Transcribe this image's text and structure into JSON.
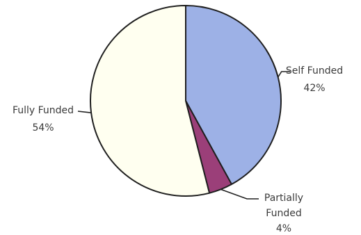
{
  "chart_data": {
    "type": "pie",
    "title": "",
    "slices": [
      {
        "label_lines": [
          "Self Funded"
        ],
        "value_label": "42%",
        "value": 42,
        "color": "#9DB1E6"
      },
      {
        "label_lines": [
          "Partially",
          "Funded"
        ],
        "value_label": "4%",
        "value": 4,
        "color": "#9B3F79"
      },
      {
        "label_lines": [
          "Fully Funded"
        ],
        "value_label": "54%",
        "value": 54,
        "color": "#FFFFF0"
      }
    ],
    "start_angle_deg": 0,
    "direction": "clockwise",
    "legend": "none"
  }
}
